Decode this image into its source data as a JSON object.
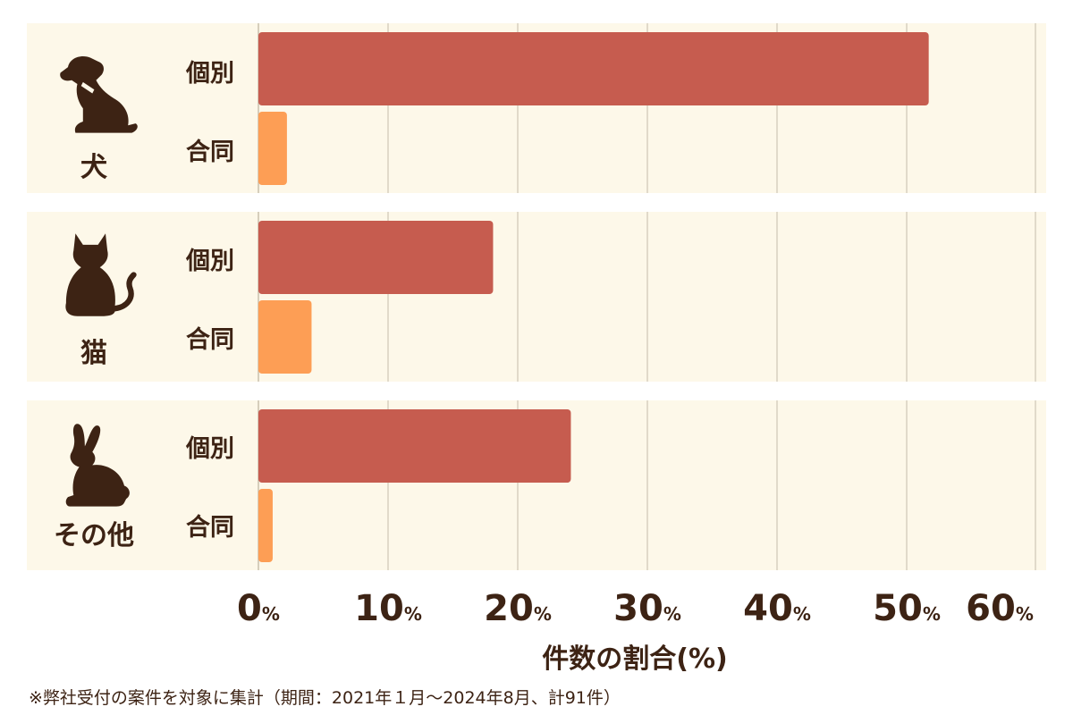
{
  "chart_data": {
    "type": "bar",
    "orientation": "horizontal",
    "groups": [
      "犬",
      "猫",
      "その他"
    ],
    "bar_categories": [
      "個別",
      "合同"
    ],
    "series": [
      {
        "name": "個別",
        "color": "#c65c4f",
        "values": [
          51.7,
          18.1,
          24.1
        ]
      },
      {
        "name": "合同",
        "color": "#fd9e55",
        "values": [
          2.2,
          4.1,
          1.1
        ]
      }
    ],
    "xlim": [
      0,
      60
    ],
    "x_ticks": [
      "0",
      "10",
      "20",
      "30",
      "40",
      "50",
      "60"
    ],
    "x_tick_unit": "%",
    "xlabel": "件数の割合(%)",
    "grid": true,
    "background_band_color": "#fdf8e9",
    "text_color": "#3d2314"
  },
  "footnote": "※弊社受付の案件を対象に集計（期間：2021年１月～2024年8月、計91件）",
  "icons": [
    "dog-icon",
    "cat-icon",
    "rabbit-icon"
  ]
}
